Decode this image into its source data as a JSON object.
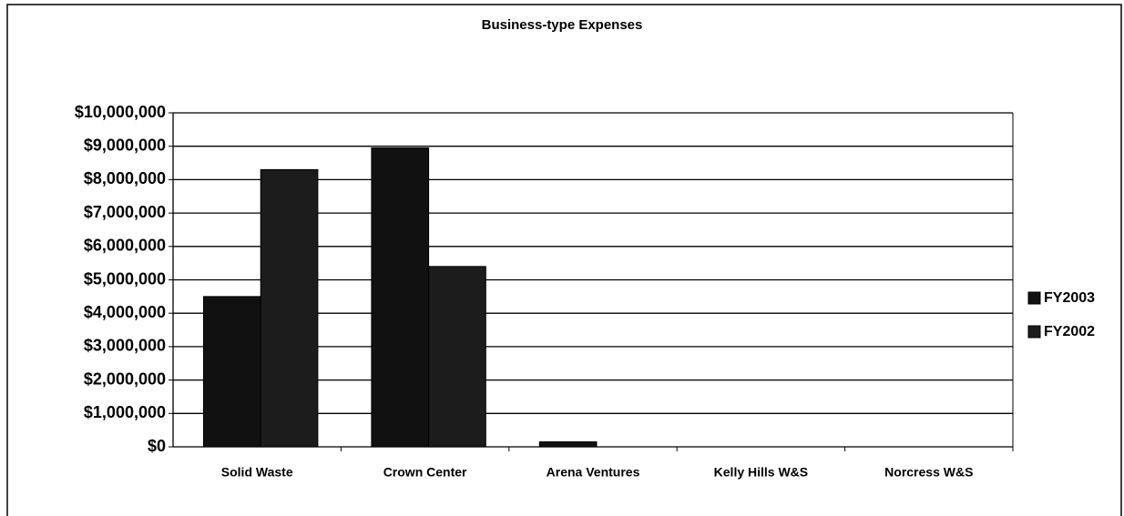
{
  "chart_data": {
    "type": "bar",
    "title": "Business-type Expenses",
    "categories": [
      "Solid Waste",
      "Crown Center",
      "Arena Ventures",
      "Kelly Hills W&S",
      "Norcress W&S"
    ],
    "series": [
      {
        "name": "FY2003",
        "color": "#111111",
        "values": [
          4500000,
          8950000,
          150000,
          0,
          0
        ]
      },
      {
        "name": "FY2002",
        "color": "#1c1c1c",
        "values": [
          8300000,
          5400000,
          0,
          0,
          0
        ]
      }
    ],
    "ylim": [
      0,
      10000000
    ],
    "yticks": [
      {
        "value": 0,
        "label": "$0"
      },
      {
        "value": 1000000,
        "label": "$1,000,000"
      },
      {
        "value": 2000000,
        "label": "$2,000,000"
      },
      {
        "value": 3000000,
        "label": "$3,000,000"
      },
      {
        "value": 4000000,
        "label": "$4,000,000"
      },
      {
        "value": 5000000,
        "label": "$5,000,000"
      },
      {
        "value": 6000000,
        "label": "$6,000,000"
      },
      {
        "value": 7000000,
        "label": "$7,000,000"
      },
      {
        "value": 8000000,
        "label": "$8,000,000"
      },
      {
        "value": 9000000,
        "label": "$9,000,000"
      },
      {
        "value": 10000000,
        "label": "$10,000,000"
      }
    ],
    "grid": true,
    "legend": "right"
  }
}
